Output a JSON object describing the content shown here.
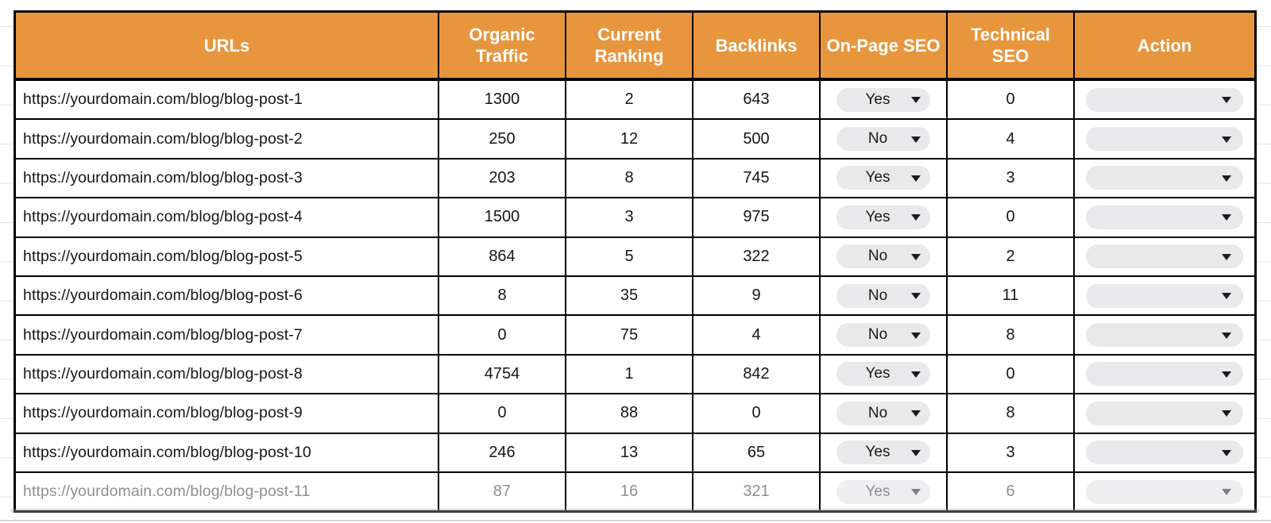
{
  "colors": {
    "header_bg": "#E8963E",
    "pill_bg": "#E9E9EB",
    "border": "#000000",
    "faded_text": "#8F8F93"
  },
  "icons": {
    "dropdown_arrow": "chevron-down-icon"
  },
  "table": {
    "headers": [
      "URLs",
      "Organic Traffic",
      "Current Ranking",
      "Backlinks",
      "On-Page SEO",
      "Technical SEO",
      "Action"
    ],
    "rows": [
      {
        "url": "https://yourdomain.com/blog/blog-post-1",
        "organic_traffic": "1300",
        "current_ranking": "2",
        "backlinks": "643",
        "on_page_seo": "Yes",
        "technical_seo": "0",
        "action": "",
        "faded": false
      },
      {
        "url": "https://yourdomain.com/blog/blog-post-2",
        "organic_traffic": "250",
        "current_ranking": "12",
        "backlinks": "500",
        "on_page_seo": "No",
        "technical_seo": "4",
        "action": "",
        "faded": false
      },
      {
        "url": "https://yourdomain.com/blog/blog-post-3",
        "organic_traffic": "203",
        "current_ranking": "8",
        "backlinks": "745",
        "on_page_seo": "Yes",
        "technical_seo": "3",
        "action": "",
        "faded": false
      },
      {
        "url": "https://yourdomain.com/blog/blog-post-4",
        "organic_traffic": "1500",
        "current_ranking": "3",
        "backlinks": "975",
        "on_page_seo": "Yes",
        "technical_seo": "0",
        "action": "",
        "faded": false
      },
      {
        "url": "https://yourdomain.com/blog/blog-post-5",
        "organic_traffic": "864",
        "current_ranking": "5",
        "backlinks": "322",
        "on_page_seo": "No",
        "technical_seo": "2",
        "action": "",
        "faded": false
      },
      {
        "url": "https://yourdomain.com/blog/blog-post-6",
        "organic_traffic": "8",
        "current_ranking": "35",
        "backlinks": "9",
        "on_page_seo": "No",
        "technical_seo": "11",
        "action": "",
        "faded": false
      },
      {
        "url": "https://yourdomain.com/blog/blog-post-7",
        "organic_traffic": "0",
        "current_ranking": "75",
        "backlinks": "4",
        "on_page_seo": "No",
        "technical_seo": "8",
        "action": "",
        "faded": false
      },
      {
        "url": "https://yourdomain.com/blog/blog-post-8",
        "organic_traffic": "4754",
        "current_ranking": "1",
        "backlinks": "842",
        "on_page_seo": "Yes",
        "technical_seo": "0",
        "action": "",
        "faded": false
      },
      {
        "url": "https://yourdomain.com/blog/blog-post-9",
        "organic_traffic": "0",
        "current_ranking": "88",
        "backlinks": "0",
        "on_page_seo": "No",
        "technical_seo": "8",
        "action": "",
        "faded": false
      },
      {
        "url": "https://yourdomain.com/blog/blog-post-10",
        "organic_traffic": "246",
        "current_ranking": "13",
        "backlinks": "65",
        "on_page_seo": "Yes",
        "technical_seo": "3",
        "action": "",
        "faded": false
      },
      {
        "url": "https://yourdomain.com/blog/blog-post-11",
        "organic_traffic": "87",
        "current_ranking": "16",
        "backlinks": "321",
        "on_page_seo": "Yes",
        "technical_seo": "6",
        "action": "",
        "faded": true
      }
    ]
  }
}
